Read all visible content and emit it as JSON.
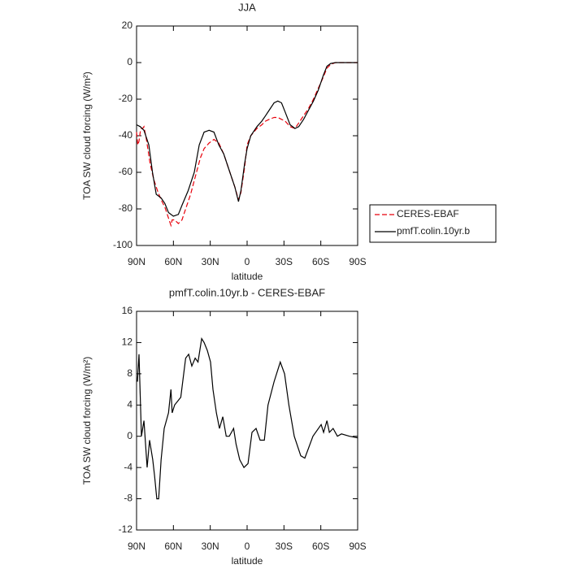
{
  "chart_data": [
    {
      "type": "line",
      "title": "JJA",
      "xlabel": "latitude",
      "ylabel": "TOA SW cloud forcing (W/m²)",
      "xlim": [
        90,
        -90
      ],
      "ylim": [
        -100,
        20
      ],
      "xticks": [
        {
          "value": 90,
          "label": "90N"
        },
        {
          "value": 60,
          "label": "60N"
        },
        {
          "value": 30,
          "label": "30N"
        },
        0,
        {
          "value": -30,
          "label": "30S"
        },
        {
          "value": -60,
          "label": "60S"
        },
        {
          "value": -90,
          "label": "90S"
        }
      ],
      "yticks": [
        20,
        0,
        -20,
        -40,
        -60,
        -80,
        -100
      ],
      "legend": "right",
      "series": [
        {
          "name": "CERES-EBAF",
          "color": "#e8000b",
          "dashed": true,
          "x": [
            90,
            89,
            88,
            87,
            86,
            85,
            84,
            82,
            79,
            76,
            73,
            70,
            67,
            64,
            62,
            61,
            59,
            56,
            53,
            50,
            46,
            42,
            38,
            35,
            31,
            27,
            23,
            19,
            15,
            10,
            7,
            5,
            2,
            0,
            -3,
            -8,
            -12,
            -15,
            -18,
            -22,
            -25,
            -28,
            -31,
            -35,
            -39,
            -42,
            -46,
            -50,
            -54,
            -58,
            -62,
            -65,
            -68,
            -72,
            -90
          ],
          "values": [
            -38,
            -45,
            -43,
            -38,
            -36,
            -36,
            -35,
            -42,
            -55,
            -64,
            -70,
            -75,
            -79,
            -85,
            -89,
            -86,
            -86,
            -88,
            -86,
            -80,
            -72,
            -62,
            -52,
            -47,
            -44,
            -42,
            -44,
            -50,
            -58,
            -68,
            -75,
            -71,
            -57,
            -45,
            -40,
            -36,
            -34,
            -32,
            -31,
            -30,
            -30,
            -31,
            -32,
            -35,
            -36,
            -33,
            -29,
            -25,
            -20,
            -14,
            -8,
            -3,
            -1,
            0,
            0
          ]
        },
        {
          "name": "pmfT.colin.10yr.b",
          "color": "#000000",
          "dashed": false,
          "x": [
            90,
            87,
            84,
            80,
            77,
            74,
            70,
            67,
            64,
            60,
            56,
            53,
            48,
            43,
            39,
            35,
            31,
            27,
            23,
            19,
            15,
            10,
            7,
            5,
            2,
            0,
            -3,
            -8,
            -12,
            -15,
            -18,
            -22,
            -25,
            -28,
            -31,
            -35,
            -39,
            -42,
            -46,
            -50,
            -54,
            -58,
            -62,
            -65,
            -68,
            -72,
            -80,
            -90
          ],
          "values": [
            -34,
            -35,
            -37,
            -45,
            -60,
            -72,
            -74,
            -77,
            -82,
            -84,
            -83,
            -78,
            -70,
            -60,
            -45,
            -38,
            -37,
            -38,
            -45,
            -50,
            -58,
            -68,
            -76,
            -70,
            -55,
            -47,
            -40,
            -35,
            -32,
            -29,
            -26,
            -22,
            -21,
            -22,
            -27,
            -34,
            -36,
            -35,
            -31,
            -26,
            -21,
            -15,
            -7,
            -2,
            -0.5,
            0,
            0,
            0
          ]
        }
      ]
    },
    {
      "type": "line",
      "title": "pmfT.colin.10yr.b - CERES-EBAF",
      "xlabel": "latitude",
      "ylabel": "TOA SW cloud forcing (W/m²)",
      "xlim": [
        90,
        -90
      ],
      "ylim": [
        -12,
        16
      ],
      "xticks": [
        {
          "value": 90,
          "label": "90N"
        },
        {
          "value": 60,
          "label": "60N"
        },
        {
          "value": 30,
          "label": "30N"
        },
        0,
        {
          "value": -30,
          "label": "30S"
        },
        {
          "value": -60,
          "label": "60S"
        },
        {
          "value": -90,
          "label": "90S"
        }
      ],
      "yticks": [
        16,
        12,
        8,
        4,
        0,
        -4,
        -8,
        -12
      ],
      "series": [
        {
          "color": "#000000",
          "dashed": false,
          "x": [
            89.3,
            88,
            86,
            84,
            81.4,
            79.4,
            76.8,
            75.4,
            73.5,
            72,
            70,
            67.5,
            64,
            62,
            61,
            59,
            54,
            50,
            47.6,
            45,
            42.3,
            40,
            37,
            35,
            32.4,
            29.8,
            27.8,
            25,
            22.5,
            19.8,
            17,
            14.5,
            11,
            9,
            6,
            2.6,
            -0.7,
            -4,
            -7.3,
            -10.6,
            -14,
            -17,
            -22,
            -27,
            -30.5,
            -34,
            -38.4,
            -43.7,
            -47,
            -53.6,
            -60.3,
            -62.3,
            -65,
            -67,
            -70,
            -73.5,
            -76.8,
            -83.4,
            -90
          ],
          "values": [
            7,
            10.5,
            0,
            2,
            -4,
            -0.5,
            -3,
            -5,
            -8,
            -8,
            -3,
            1,
            3,
            6,
            3,
            4,
            5,
            10,
            10.5,
            9,
            10,
            9.5,
            12.5,
            12,
            11,
            9.5,
            6,
            3,
            1,
            2.5,
            0,
            0,
            1,
            -1,
            -3,
            -4,
            -3.5,
            0.5,
            1,
            -0.5,
            -0.5,
            4,
            7,
            9.5,
            8,
            4,
            0,
            -2.5,
            -2.8,
            0,
            1.5,
            0.5,
            2,
            0.5,
            1,
            0,
            0.3,
            0,
            -0.2
          ]
        }
      ]
    }
  ]
}
